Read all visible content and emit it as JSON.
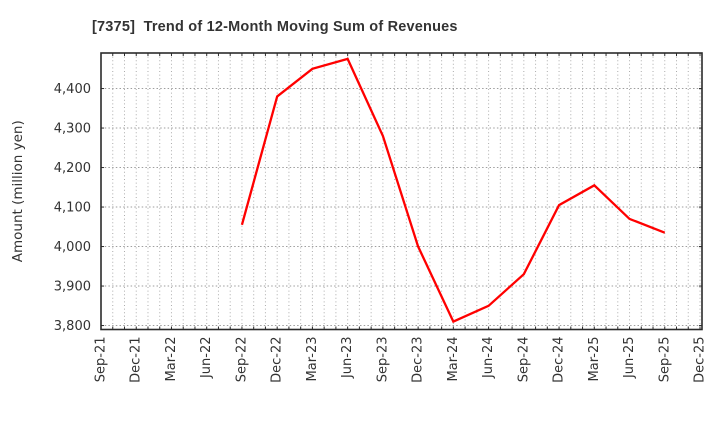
{
  "chart_data": {
    "type": "line",
    "title": "[7375]  Trend of 12-Month Moving Sum of Revenues",
    "ylabel": "Amount (million yen)",
    "xlabel": "",
    "x_tick_labels": [
      "Sep-21",
      "Dec-21",
      "Mar-22",
      "Jun-22",
      "Sep-22",
      "Dec-22",
      "Mar-23",
      "Jun-23",
      "Sep-23",
      "Dec-23",
      "Mar-24",
      "Jun-24",
      "Sep-24",
      "Dec-24",
      "Mar-25",
      "Jun-25",
      "Sep-25",
      "Dec-25"
    ],
    "y_ticks": [
      3800,
      3900,
      4000,
      4100,
      4200,
      4300,
      4400
    ],
    "ylim": [
      3790,
      4490
    ],
    "grid": "dotted, vertical line every month, horizontal line every 100",
    "legend_position": "none",
    "series": [
      {
        "name": "12-Month Moving Sum of Revenues",
        "color": "#ff0000",
        "points": [
          {
            "x": "Sep-22",
            "y": 4055
          },
          {
            "x": "Dec-22",
            "y": 4380
          },
          {
            "x": "Mar-23",
            "y": 4450
          },
          {
            "x": "Jun-23",
            "y": 4475
          },
          {
            "x": "Sep-23",
            "y": 4280
          },
          {
            "x": "Dec-23",
            "y": 4000
          },
          {
            "x": "Mar-24",
            "y": 3810
          },
          {
            "x": "Jun-24",
            "y": 3850
          },
          {
            "x": "Sep-24",
            "y": 3930
          },
          {
            "x": "Dec-24",
            "y": 4105
          },
          {
            "x": "Mar-25",
            "y": 4155
          },
          {
            "x": "Jun-25",
            "y": 4070
          },
          {
            "x": "Sep-25",
            "y": 4035
          }
        ]
      }
    ]
  },
  "colors": {
    "line": "#ff0000",
    "frame": "#2b2b2b",
    "grid": "#9e9e9e",
    "text": "#333333",
    "background": "#ffffff"
  }
}
